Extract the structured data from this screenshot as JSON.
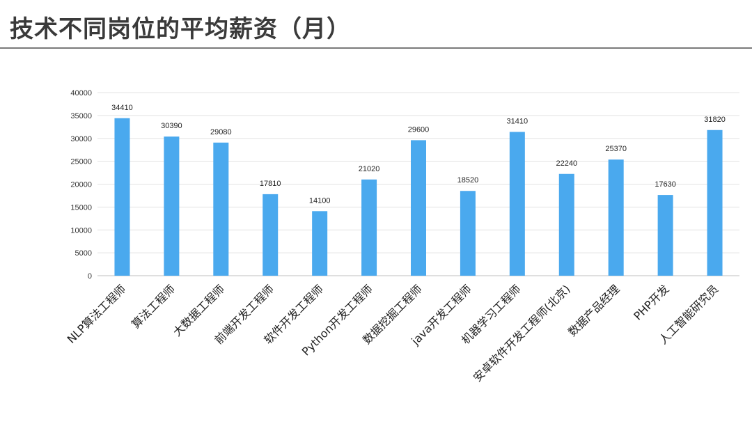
{
  "title": "技术不同岗位的平均薪资（月）",
  "chart_data": {
    "type": "bar",
    "categories": [
      "NLP算法工程师",
      "算法工程师",
      "大数据工程师",
      "前端开发工程师",
      "软件开发工程师",
      "Python开发工程师",
      "数据挖掘工程师",
      "java开发工程师",
      "机器学习工程师",
      "安卓软件开发工程师(北京)",
      "数据产品经理",
      "PHP开发",
      "人工智能研究员"
    ],
    "values": [
      34410,
      30390,
      29080,
      17810,
      14100,
      21020,
      29600,
      18520,
      31410,
      22240,
      25370,
      17630,
      31820
    ],
    "ylim": [
      0,
      40000
    ],
    "yticks": [
      0,
      5000,
      10000,
      15000,
      20000,
      25000,
      30000,
      35000,
      40000
    ],
    "grid": true,
    "bar_color": "#4aa9ee"
  }
}
